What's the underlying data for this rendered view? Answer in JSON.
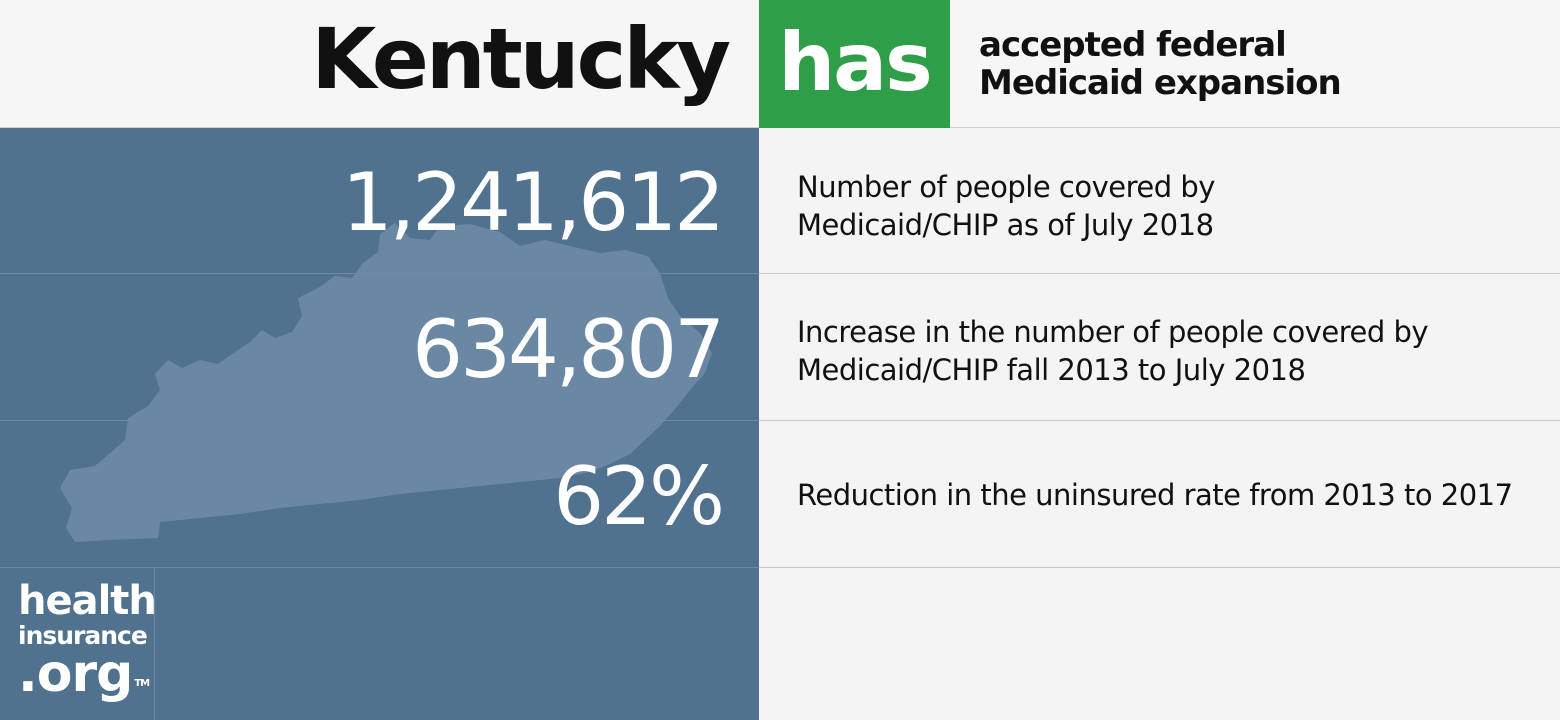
{
  "header": {
    "state": "Kentucky",
    "status": "has",
    "description_line1": "accepted federal",
    "description_line2": "Medicaid expansion",
    "status_color": "#2f9e48"
  },
  "stats": [
    {
      "value": "1,241,612",
      "desc_line1": "Number of people covered by",
      "desc_line2": "Medicaid/CHIP as of July 2018"
    },
    {
      "value": "634,807",
      "desc_line1": "Increase in the number of people covered by",
      "desc_line2": "Medicaid/CHIP fall 2013 to July 2018"
    },
    {
      "value": "62%",
      "desc_line1": "Reduction in the uninsured rate from 2013 to 2017",
      "desc_line2": ""
    }
  ],
  "logo": {
    "line1": "health",
    "line2": "insurance",
    "line3": ".org",
    "trademark": "TM"
  },
  "colors": {
    "panel_blue": "#50728f",
    "state_shape": "#6a88a3",
    "background": "#f4f4f4"
  }
}
